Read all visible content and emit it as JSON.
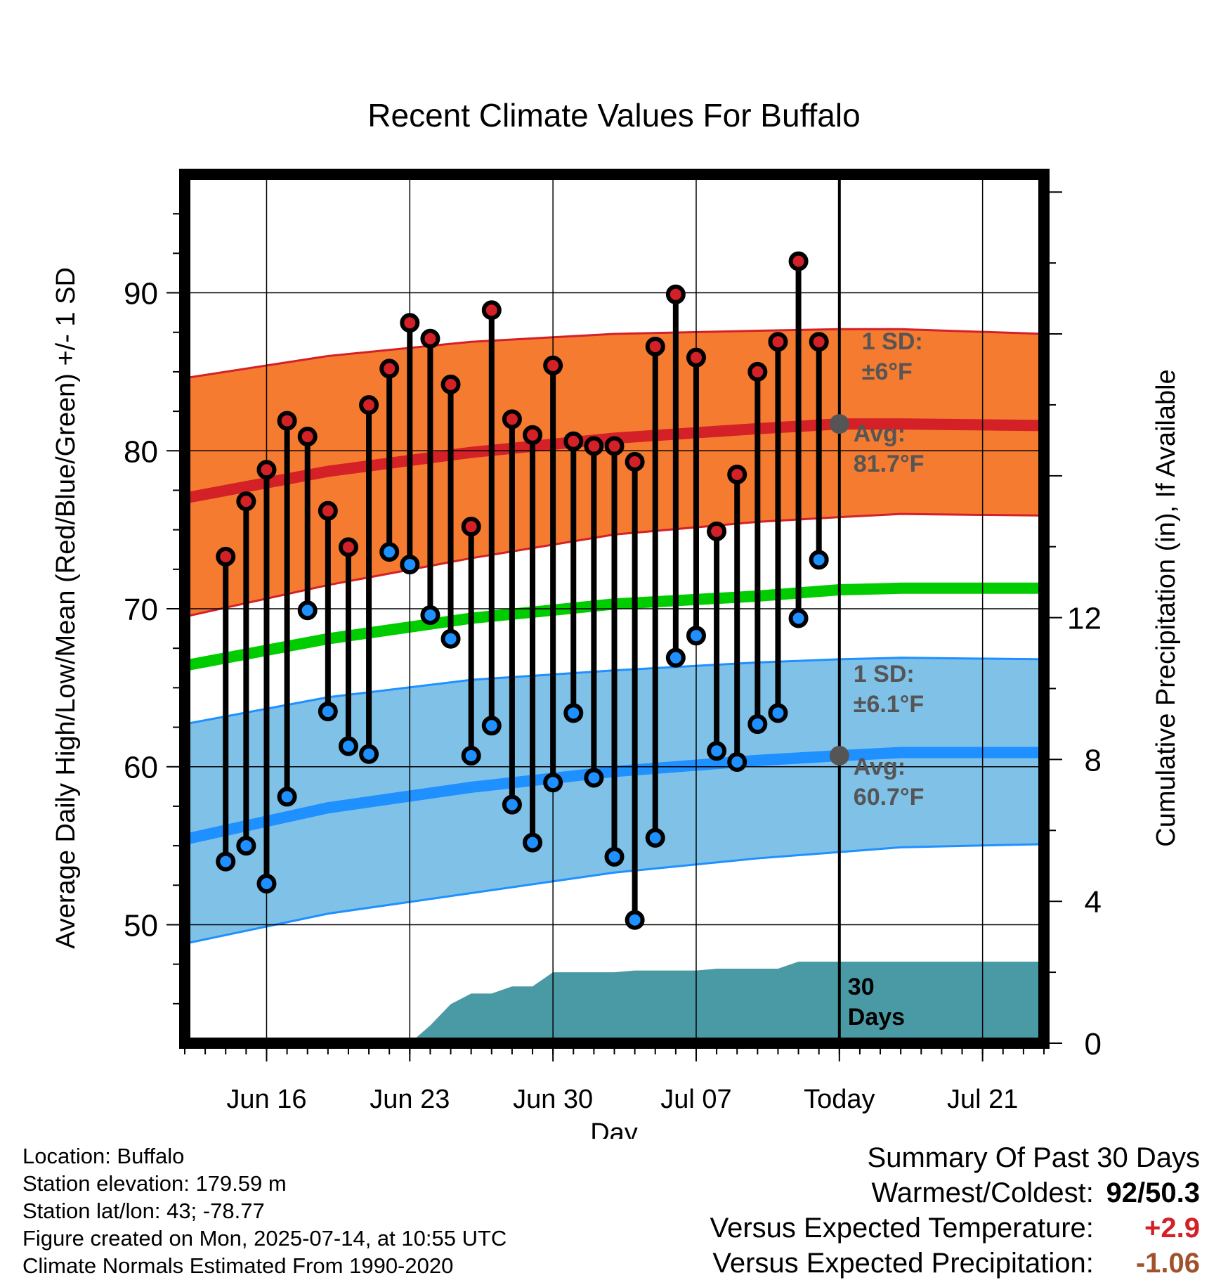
{
  "chart_data": {
    "type": "line",
    "title": "Recent Climate Values For Buffalo",
    "xlabel": "Day",
    "ylabel": "Average Daily High/Low/Mean (Red/Blue/Green) +/- 1 SD",
    "y2label": "Cumulative Precipitation (in), If Available",
    "ylim": [
      42.5,
      97.5
    ],
    "y_ticks": [
      50,
      60,
      70,
      80,
      90
    ],
    "y2lim": [
      0,
      24.5
    ],
    "y2_ticks": [
      0,
      4,
      8,
      12
    ],
    "x_range": [
      "2025-06-12",
      "2025-07-24"
    ],
    "x_ticks": [
      {
        "date": "2025-06-16",
        "label": "Jun 16"
      },
      {
        "date": "2025-06-23",
        "label": "Jun 23"
      },
      {
        "date": "2025-06-30",
        "label": "Jun 30"
      },
      {
        "date": "2025-07-07",
        "label": "Jul 07"
      },
      {
        "date": "2025-07-14",
        "label": "Today"
      },
      {
        "date": "2025-07-21",
        "label": "Jul 21"
      }
    ],
    "today": "2025-07-14",
    "grid": true,
    "normals": {
      "dates": [
        "2025-06-12",
        "2025-06-19",
        "2025-06-26",
        "2025-07-03",
        "2025-07-10",
        "2025-07-14",
        "2025-07-17",
        "2025-07-24"
      ],
      "high_avg": [
        77.0,
        78.7,
        79.9,
        80.8,
        81.4,
        81.7,
        81.7,
        81.6
      ],
      "high_upper": [
        84.6,
        86.0,
        86.9,
        87.4,
        87.6,
        87.7,
        87.7,
        87.4
      ],
      "high_lower": [
        69.5,
        71.5,
        73.2,
        74.7,
        75.5,
        75.8,
        76.0,
        75.9
      ],
      "mean_avg": [
        66.4,
        68.1,
        69.4,
        70.3,
        70.8,
        71.2,
        71.3,
        71.3
      ],
      "low_avg": [
        55.4,
        57.4,
        58.7,
        59.7,
        60.4,
        60.7,
        60.9,
        60.9
      ],
      "low_upper": [
        62.7,
        64.4,
        65.5,
        66.1,
        66.6,
        66.8,
        66.9,
        66.8
      ],
      "low_lower": [
        48.8,
        50.7,
        52.0,
        53.3,
        54.2,
        54.6,
        54.9,
        55.1
      ],
      "colors": {
        "high_band": "#f47b30",
        "high_line": "#d42027",
        "mean_line": "#00cc00",
        "low_band": "#80c1e8",
        "low_line": "#1e90ff"
      }
    },
    "annotations": {
      "high_sd_line1": "1 SD:",
      "high_sd_line2": "±6°F",
      "high_avg_line1": "Avg:",
      "high_avg_line2": "81.7°F",
      "low_sd_line1": "1 SD:",
      "low_sd_line2": "±6.1°F",
      "low_avg_line1": "Avg:",
      "low_avg_line2": "60.7°F",
      "days_line1": "30",
      "days_line2": "Days",
      "high_avg_value": 81.7,
      "low_avg_value": 60.7
    },
    "daily": {
      "dates": [
        "2025-06-14",
        "2025-06-15",
        "2025-06-16",
        "2025-06-17",
        "2025-06-18",
        "2025-06-19",
        "2025-06-20",
        "2025-06-21",
        "2025-06-22",
        "2025-06-23",
        "2025-06-24",
        "2025-06-25",
        "2025-06-26",
        "2025-06-27",
        "2025-06-28",
        "2025-06-29",
        "2025-06-30",
        "2025-07-01",
        "2025-07-02",
        "2025-07-03",
        "2025-07-04",
        "2025-07-05",
        "2025-07-06",
        "2025-07-07",
        "2025-07-08",
        "2025-07-09",
        "2025-07-10",
        "2025-07-11",
        "2025-07-12",
        "2025-07-13"
      ],
      "high": [
        73.3,
        76.8,
        78.8,
        81.9,
        80.9,
        76.2,
        73.9,
        82.9,
        85.2,
        88.1,
        87.1,
        84.2,
        75.2,
        88.9,
        82.0,
        81.0,
        85.4,
        80.6,
        80.3,
        80.3,
        79.3,
        86.6,
        89.9,
        85.9,
        74.9,
        78.5,
        85.0,
        86.9,
        92.0,
        86.9
      ],
      "low": [
        54.0,
        55.0,
        52.6,
        58.1,
        69.9,
        63.5,
        61.3,
        60.8,
        73.6,
        72.8,
        69.6,
        68.1,
        60.7,
        62.6,
        57.6,
        55.2,
        59.0,
        63.4,
        59.3,
        54.3,
        50.3,
        55.5,
        66.9,
        68.3,
        61.0,
        60.3,
        62.7,
        63.4,
        69.4,
        73.1
      ]
    },
    "precip": {
      "dates": [
        "2025-06-12",
        "2025-06-23",
        "2025-06-24",
        "2025-06-25",
        "2025-06-26",
        "2025-06-27",
        "2025-06-28",
        "2025-06-29",
        "2025-06-30",
        "2025-07-01",
        "2025-07-02",
        "2025-07-03",
        "2025-07-04",
        "2025-07-05",
        "2025-07-06",
        "2025-07-07",
        "2025-07-08",
        "2025-07-09",
        "2025-07-10",
        "2025-07-11",
        "2025-07-12",
        "2025-07-13",
        "2025-07-24"
      ],
      "values": [
        0,
        0,
        0.5,
        1.1,
        1.4,
        1.4,
        1.6,
        1.6,
        2.0,
        2.0,
        2.0,
        2.0,
        2.05,
        2.05,
        2.05,
        2.05,
        2.1,
        2.1,
        2.1,
        2.1,
        2.3,
        2.3,
        2.3
      ],
      "color": "#4a9aa5"
    }
  },
  "info": {
    "location": "Location: Buffalo",
    "elevation": "Station elevation: 179.59 m",
    "latlon": "Station lat/lon: 43; -78.77",
    "created": "Figure created on Mon, 2025-07-14, at 10:55 UTC",
    "normals": "Climate Normals Estimated From 1990-2020"
  },
  "summary": {
    "heading": "Summary Of Past 30 Days",
    "warm_cold_label": "Warmest/Coldest:",
    "warm_cold_value": "92/50.3",
    "temp_label": "Versus Expected Temperature:",
    "temp_value": "+2.9",
    "temp_color": "#d42027",
    "precip_label": "Versus Expected Precipitation:",
    "precip_value": "-1.06",
    "precip_color": "#a0522d"
  }
}
